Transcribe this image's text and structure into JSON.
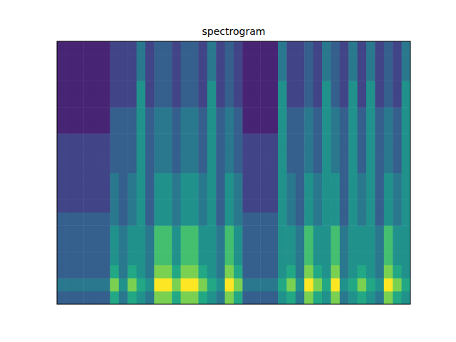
{
  "chart_data": {
    "type": "heatmap",
    "title": "spectrogram",
    "tick_labels": false,
    "zlim": [
      0,
      10
    ],
    "cells": [
      [
        3,
        4,
        3,
        3,
        3,
        3,
        3,
        2,
        2,
        2,
        2,
        2,
        2,
        1,
        1,
        1,
        1,
        1,
        1,
        1
      ],
      [
        3,
        4,
        3,
        3,
        3,
        3,
        3,
        2,
        2,
        2,
        2,
        2,
        2,
        1,
        1,
        1,
        1,
        1,
        1,
        1
      ],
      [
        3,
        4,
        3,
        3,
        3,
        3,
        3,
        2,
        2,
        2,
        2,
        2,
        2,
        1,
        1,
        1,
        1,
        1,
        1,
        1
      ],
      [
        3,
        4,
        3,
        3,
        3,
        3,
        3,
        2,
        2,
        2,
        2,
        2,
        2,
        1,
        1,
        1,
        1,
        1,
        1,
        1
      ],
      [
        3,
        4,
        3,
        3,
        3,
        3,
        3,
        2,
        2,
        2,
        2,
        2,
        2,
        1,
        1,
        1,
        1,
        1,
        1,
        1
      ],
      [
        3,
        4,
        3,
        3,
        3,
        3,
        3,
        2,
        2,
        2,
        2,
        2,
        2,
        1,
        1,
        1,
        1,
        1,
        1,
        1
      ],
      [
        6,
        8,
        6,
        5,
        5,
        5,
        4,
        4,
        4,
        4,
        3,
        3,
        3,
        3,
        3,
        2,
        2,
        2,
        2,
        2
      ],
      [
        4,
        5,
        4,
        4,
        4,
        4,
        3,
        3,
        3,
        3,
        3,
        3,
        3,
        3,
        3,
        2,
        2,
        2,
        2,
        2
      ],
      [
        6,
        8,
        6,
        5,
        5,
        5,
        4,
        4,
        4,
        4,
        3,
        3,
        3,
        3,
        3,
        2,
        2,
        2,
        2,
        2
      ],
      [
        5,
        6,
        5,
        5,
        5,
        5,
        5,
        5,
        5,
        5,
        5,
        5,
        5,
        5,
        5,
        5,
        5,
        4,
        4,
        4
      ],
      [
        4,
        5,
        4,
        4,
        4,
        4,
        3,
        3,
        3,
        3,
        3,
        3,
        3,
        3,
        3,
        2,
        2,
        2,
        2,
        2
      ],
      [
        8,
        10,
        8,
        7,
        7,
        7,
        5,
        5,
        5,
        5,
        4,
        4,
        4,
        4,
        4,
        3,
        3,
        3,
        3,
        3
      ],
      [
        8,
        10,
        8,
        7,
        7,
        7,
        5,
        5,
        5,
        5,
        4,
        4,
        4,
        4,
        4,
        3,
        3,
        3,
        3,
        3
      ],
      [
        6,
        8,
        6,
        5,
        5,
        5,
        4,
        4,
        4,
        4,
        3,
        3,
        3,
        3,
        3,
        2,
        2,
        2,
        2,
        2
      ],
      [
        8,
        10,
        8,
        7,
        7,
        7,
        5,
        5,
        5,
        5,
        4,
        4,
        4,
        4,
        4,
        3,
        3,
        3,
        3,
        3
      ],
      [
        8,
        10,
        8,
        7,
        7,
        7,
        5,
        5,
        5,
        5,
        4,
        4,
        4,
        4,
        4,
        3,
        3,
        3,
        3,
        3
      ],
      [
        6,
        8,
        6,
        5,
        5,
        5,
        4,
        4,
        4,
        4,
        3,
        3,
        3,
        3,
        3,
        2,
        2,
        2,
        2,
        2
      ],
      [
        5,
        6,
        5,
        5,
        5,
        5,
        5,
        5,
        5,
        5,
        5,
        5,
        5,
        5,
        5,
        5,
        5,
        4,
        4,
        4
      ],
      [
        4,
        5,
        4,
        4,
        4,
        4,
        3,
        3,
        3,
        3,
        3,
        3,
        3,
        3,
        3,
        2,
        2,
        2,
        2,
        2
      ],
      [
        8,
        10,
        8,
        7,
        7,
        7,
        5,
        5,
        5,
        5,
        4,
        4,
        4,
        4,
        4,
        3,
        3,
        3,
        3,
        3
      ],
      [
        6,
        8,
        6,
        5,
        5,
        5,
        4,
        4,
        4,
        4,
        3,
        3,
        3,
        3,
        3,
        2,
        2,
        2,
        2,
        2
      ],
      [
        3,
        4,
        3,
        3,
        3,
        3,
        3,
        2,
        2,
        2,
        2,
        2,
        2,
        1,
        1,
        1,
        1,
        1,
        1,
        1
      ],
      [
        3,
        4,
        3,
        3,
        3,
        3,
        3,
        2,
        2,
        2,
        2,
        2,
        2,
        1,
        1,
        1,
        1,
        1,
        1,
        1
      ],
      [
        3,
        4,
        3,
        3,
        3,
        3,
        3,
        2,
        2,
        2,
        2,
        2,
        2,
        1,
        1,
        1,
        1,
        1,
        1,
        1
      ],
      [
        3,
        4,
        3,
        3,
        3,
        3,
        3,
        2,
        2,
        2,
        2,
        2,
        2,
        1,
        1,
        1,
        1,
        1,
        1,
        1
      ],
      [
        5,
        6,
        5,
        5,
        5,
        5,
        5,
        5,
        5,
        5,
        5,
        5,
        5,
        5,
        5,
        5,
        5,
        4,
        4,
        4
      ],
      [
        6,
        8,
        6,
        5,
        5,
        5,
        4,
        4,
        4,
        4,
        3,
        3,
        3,
        3,
        3,
        2,
        2,
        2,
        2,
        2
      ],
      [
        4,
        5,
        4,
        4,
        4,
        4,
        3,
        3,
        3,
        3,
        3,
        3,
        3,
        3,
        3,
        2,
        2,
        2,
        2,
        2
      ],
      [
        8,
        10,
        8,
        7,
        7,
        7,
        5,
        5,
        5,
        5,
        4,
        4,
        4,
        4,
        4,
        3,
        3,
        3,
        3,
        3
      ],
      [
        6,
        8,
        6,
        5,
        5,
        5,
        4,
        4,
        4,
        4,
        3,
        3,
        3,
        3,
        3,
        2,
        2,
        2,
        2,
        2
      ],
      [
        5,
        6,
        5,
        5,
        5,
        5,
        5,
        5,
        5,
        5,
        5,
        5,
        5,
        5,
        5,
        5,
        5,
        4,
        4,
        4
      ],
      [
        8,
        10,
        8,
        7,
        7,
        7,
        5,
        5,
        5,
        5,
        4,
        4,
        4,
        4,
        4,
        3,
        3,
        3,
        3,
        3
      ],
      [
        4,
        5,
        4,
        4,
        4,
        4,
        3,
        3,
        3,
        3,
        3,
        3,
        3,
        3,
        3,
        2,
        2,
        2,
        2,
        2
      ],
      [
        5,
        6,
        5,
        5,
        5,
        5,
        5,
        5,
        5,
        5,
        5,
        5,
        5,
        5,
        5,
        5,
        5,
        4,
        4,
        4
      ],
      [
        6,
        8,
        6,
        5,
        5,
        5,
        4,
        4,
        4,
        4,
        3,
        3,
        3,
        3,
        3,
        2,
        2,
        2,
        2,
        2
      ],
      [
        5,
        6,
        5,
        5,
        5,
        5,
        5,
        5,
        5,
        5,
        5,
        5,
        5,
        5,
        5,
        5,
        5,
        4,
        4,
        4
      ],
      [
        4,
        5,
        4,
        4,
        4,
        4,
        3,
        3,
        3,
        3,
        3,
        3,
        3,
        3,
        3,
        2,
        2,
        2,
        2,
        2
      ],
      [
        8,
        10,
        8,
        7,
        7,
        7,
        5,
        5,
        5,
        5,
        4,
        4,
        4,
        4,
        4,
        3,
        3,
        3,
        3,
        3
      ],
      [
        6,
        8,
        6,
        5,
        5,
        5,
        4,
        4,
        4,
        4,
        3,
        3,
        3,
        3,
        3,
        2,
        2,
        2,
        2,
        2
      ],
      [
        5,
        6,
        5,
        5,
        5,
        5,
        5,
        5,
        5,
        5,
        5,
        5,
        5,
        5,
        5,
        5,
        5,
        4,
        4,
        4
      ]
    ]
  }
}
